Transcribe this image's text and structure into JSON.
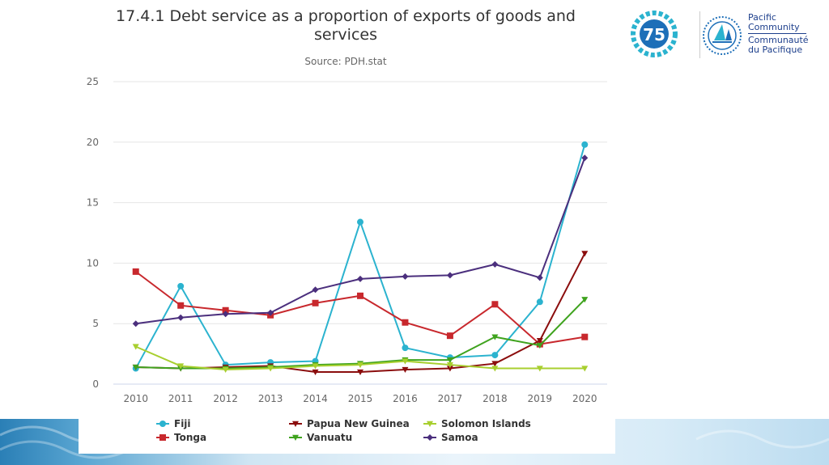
{
  "logo": {
    "org_name_en_1": "Pacific",
    "org_name_en_2": "Community",
    "org_name_fr_1": "Communauté",
    "org_name_fr_2": "du Pacifique",
    "anniversary_text": "75"
  },
  "colors": {
    "Fiji": "#2bb3cf",
    "Tonga": "#c8282d",
    "Papua New Guinea": "#8b0d0d",
    "Vanuatu": "#3fa31e",
    "Solomon Islands": "#a8cf2f",
    "Samoa": "#4b2f7d"
  },
  "chart_data": {
    "type": "line",
    "title_line1": "17.4.1 Debt service as a proportion of exports of goods and",
    "title_line2": "services",
    "subtitle": "Source: PDH.stat",
    "xlabel": "",
    "ylabel": "",
    "ylim": [
      0,
      25
    ],
    "yticks": [
      "0",
      "5",
      "10",
      "15",
      "20",
      "25"
    ],
    "x": [
      "2010",
      "2011",
      "2012",
      "2013",
      "2014",
      "2015",
      "2016",
      "2017",
      "2018",
      "2019",
      "2020"
    ],
    "grid": "horizontal",
    "legend_position": "bottom",
    "series": [
      {
        "name": "Fiji",
        "marker": "circle",
        "values": [
          1.3,
          8.1,
          1.6,
          1.8,
          1.9,
          13.4,
          3.0,
          2.2,
          2.4,
          6.8,
          19.8
        ]
      },
      {
        "name": "Tonga",
        "marker": "square",
        "values": [
          9.3,
          6.5,
          6.1,
          5.7,
          6.7,
          7.3,
          5.1,
          4.0,
          6.6,
          3.3,
          3.9
        ]
      },
      {
        "name": "Papua New Guinea",
        "marker": "triangle-down",
        "values": [
          1.4,
          1.3,
          1.4,
          1.5,
          1.0,
          1.0,
          1.2,
          1.3,
          1.7,
          3.6,
          10.8
        ]
      },
      {
        "name": "Vanuatu",
        "marker": "triangle-down",
        "values": [
          1.4,
          1.3,
          1.3,
          1.4,
          1.6,
          1.7,
          2.0,
          2.0,
          3.9,
          3.2,
          7.0
        ]
      },
      {
        "name": "Solomon Islands",
        "marker": "triangle-down",
        "values": [
          3.1,
          1.5,
          1.2,
          1.3,
          1.5,
          1.6,
          1.9,
          1.6,
          1.3,
          1.3,
          1.3
        ]
      },
      {
        "name": "Samoa",
        "marker": "diamond",
        "values": [
          5.0,
          5.5,
          5.8,
          5.9,
          7.8,
          8.7,
          8.9,
          9.0,
          9.9,
          8.8,
          18.7
        ]
      }
    ]
  }
}
